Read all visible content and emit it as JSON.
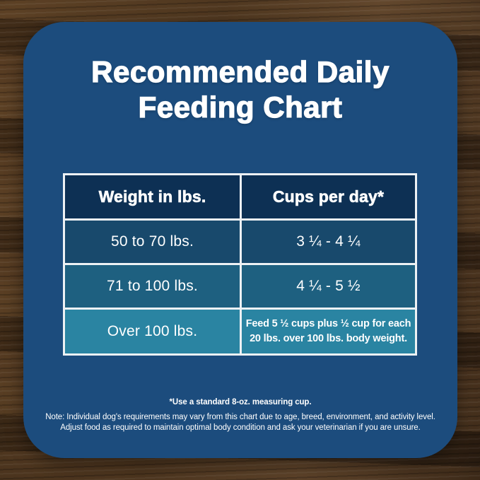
{
  "title": {
    "line1": "Recommended Daily",
    "line2": "Feeding Chart"
  },
  "chart_data": {
    "type": "table",
    "title": "Recommended Daily Feeding Chart",
    "columns": [
      "Weight in lbs.",
      "Cups per day*"
    ],
    "rows": [
      [
        "50 to 70 lbs.",
        "3 ¼ - 4 ¼"
      ],
      [
        "71 to 100 lbs.",
        "4 ¼ - 5 ½"
      ],
      [
        "Over 100 lbs.",
        "Feed 5 ½ cups plus ½ cup for each 20 lbs. over 100 lbs. body weight."
      ]
    ]
  },
  "footnotes": [
    "*Use a standard 8-oz. measuring cup.",
    "Note: Individual dog's requirements may vary from this chart due to age, breed, environment, and activity level.",
    "Adjust food as required to maintain optimal body condition and ask your veterinarian if you are unsure."
  ],
  "colors": {
    "card_background": "#1c4c7d",
    "header_row": "#0d3054",
    "row_1": "#18496c",
    "row_2": "#1e6080",
    "row_3": "#2a84a2",
    "table_border": "#edf1f4",
    "text": "#ffffff"
  }
}
